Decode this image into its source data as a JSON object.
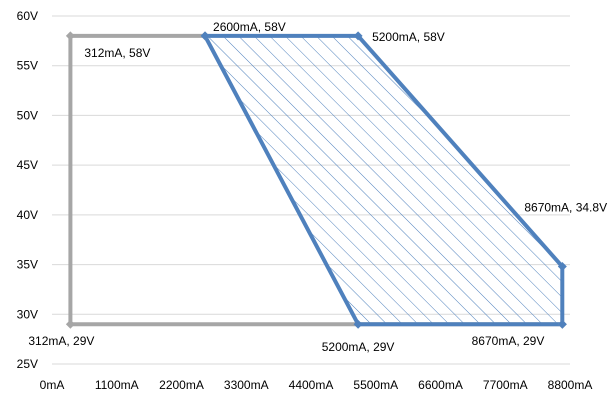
{
  "chart_data": {
    "type": "scatter",
    "title": "",
    "xlabel": "",
    "ylabel": "",
    "xlim": [
      0,
      8800
    ],
    "ylim": [
      25,
      60
    ],
    "x_ticks": [
      {
        "value": 0,
        "label": "0mA"
      },
      {
        "value": 1100,
        "label": "1100mA"
      },
      {
        "value": 2200,
        "label": "2200mA"
      },
      {
        "value": 3300,
        "label": "3300mA"
      },
      {
        "value": 4400,
        "label": "4400mA"
      },
      {
        "value": 5500,
        "label": "5500mA"
      },
      {
        "value": 6600,
        "label": "6600mA"
      },
      {
        "value": 7700,
        "label": "7700mA"
      },
      {
        "value": 8800,
        "label": "8800mA"
      }
    ],
    "y_ticks": [
      {
        "value": 25,
        "label": "25V"
      },
      {
        "value": 30,
        "label": "30V"
      },
      {
        "value": 35,
        "label": "35V"
      },
      {
        "value": 40,
        "label": "40V"
      },
      {
        "value": 45,
        "label": "45V"
      },
      {
        "value": 50,
        "label": "50V"
      },
      {
        "value": 55,
        "label": "55V"
      },
      {
        "value": 60,
        "label": "60V"
      }
    ],
    "grid": "horizontal",
    "legend": "none",
    "series": [
      {
        "color": "#a6a6a6",
        "fill": "none",
        "points": [
          {
            "x": 8670,
            "y": 29,
            "label": "8670mA, 29V"
          },
          {
            "x": 312,
            "y": 29,
            "label": "312mA, 29V"
          },
          {
            "x": 312,
            "y": 58,
            "label": "312mA, 58V"
          },
          {
            "x": 2600,
            "y": 58
          }
        ]
      },
      {
        "color": "#4f81bd",
        "fill": "hatched",
        "closed": true,
        "points": [
          {
            "x": 2600,
            "y": 58,
            "label": "2600mA, 58V"
          },
          {
            "x": 5200,
            "y": 58,
            "label": "5200mA, 58V"
          },
          {
            "x": 8670,
            "y": 34.8,
            "label": "8670mA, 34.8V"
          },
          {
            "x": 8670,
            "y": 29
          },
          {
            "x": 5200,
            "y": 29,
            "label": "5200mA, 29V"
          }
        ]
      }
    ]
  }
}
